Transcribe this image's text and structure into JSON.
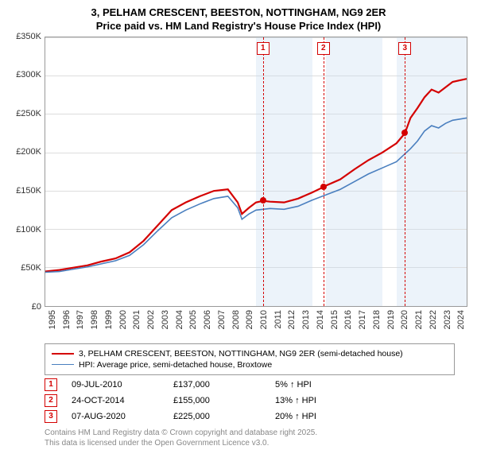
{
  "title_line1": "3, PELHAM CRESCENT, BEESTON, NOTTINGHAM, NG9 2ER",
  "title_line2": "Price paid vs. HM Land Registry's House Price Index (HPI)",
  "chart": {
    "type": "line",
    "background_color": "#ffffff",
    "plot_border_color": "#999999",
    "grid_color": "#dddddd",
    "shade_color": "rgba(200,220,240,0.35)",
    "ylim": [
      0,
      350000
    ],
    "ytick_step": 50000,
    "y_ticks": [
      "£0",
      "£50K",
      "£100K",
      "£150K",
      "£200K",
      "£250K",
      "£300K",
      "£350K"
    ],
    "x_years": [
      1995,
      1996,
      1997,
      1998,
      1999,
      2000,
      2001,
      2002,
      2003,
      2004,
      2005,
      2006,
      2007,
      2008,
      2009,
      2010,
      2011,
      2012,
      2013,
      2014,
      2015,
      2016,
      2017,
      2018,
      2019,
      2020,
      2021,
      2022,
      2023,
      2024
    ],
    "xlim": [
      1995,
      2025
    ],
    "shaded_x_ranges": [
      [
        2010,
        2011
      ],
      [
        2011,
        2012
      ],
      [
        2012,
        2013
      ],
      [
        2013,
        2014
      ],
      [
        2015,
        2016
      ],
      [
        2016,
        2017
      ],
      [
        2017,
        2018
      ],
      [
        2018,
        2019
      ],
      [
        2020,
        2021
      ],
      [
        2021,
        2022
      ],
      [
        2022,
        2023
      ],
      [
        2023,
        2024
      ],
      [
        2024,
        2025
      ]
    ],
    "series": [
      {
        "name": "price_paid",
        "label": "3, PELHAM CRESCENT, BEESTON, NOTTINGHAM, NG9 2ER (semi-detached house)",
        "color": "#d40000",
        "line_width": 2.2,
        "data": [
          [
            1995,
            45000
          ],
          [
            1996,
            47000
          ],
          [
            1997,
            50000
          ],
          [
            1998,
            53000
          ],
          [
            1999,
            58000
          ],
          [
            2000,
            62000
          ],
          [
            2001,
            70000
          ],
          [
            2002,
            85000
          ],
          [
            2003,
            105000
          ],
          [
            2004,
            125000
          ],
          [
            2005,
            135000
          ],
          [
            2006,
            143000
          ],
          [
            2007,
            150000
          ],
          [
            2008,
            152000
          ],
          [
            2008.7,
            135000
          ],
          [
            2009,
            120000
          ],
          [
            2009.5,
            128000
          ],
          [
            2010,
            135000
          ],
          [
            2010.5,
            137000
          ],
          [
            2011,
            136000
          ],
          [
            2012,
            135000
          ],
          [
            2013,
            140000
          ],
          [
            2014,
            148000
          ],
          [
            2014.8,
            155000
          ],
          [
            2015,
            157000
          ],
          [
            2016,
            165000
          ],
          [
            2017,
            178000
          ],
          [
            2018,
            190000
          ],
          [
            2019,
            200000
          ],
          [
            2020,
            212000
          ],
          [
            2020.6,
            225000
          ],
          [
            2021,
            245000
          ],
          [
            2021.5,
            258000
          ],
          [
            2022,
            272000
          ],
          [
            2022.5,
            282000
          ],
          [
            2023,
            278000
          ],
          [
            2023.5,
            285000
          ],
          [
            2024,
            292000
          ],
          [
            2024.5,
            294000
          ],
          [
            2025,
            296000
          ]
        ]
      },
      {
        "name": "hpi",
        "label": "HPI: Average price, semi-detached house, Broxtowe",
        "color": "#4a7fbf",
        "line_width": 1.6,
        "data": [
          [
            1995,
            44000
          ],
          [
            1996,
            45000
          ],
          [
            1997,
            48000
          ],
          [
            1998,
            51000
          ],
          [
            1999,
            55000
          ],
          [
            2000,
            59000
          ],
          [
            2001,
            66000
          ],
          [
            2002,
            80000
          ],
          [
            2003,
            98000
          ],
          [
            2004,
            115000
          ],
          [
            2005,
            125000
          ],
          [
            2006,
            133000
          ],
          [
            2007,
            140000
          ],
          [
            2008,
            143000
          ],
          [
            2008.7,
            128000
          ],
          [
            2009,
            113000
          ],
          [
            2009.5,
            120000
          ],
          [
            2010,
            125000
          ],
          [
            2011,
            127000
          ],
          [
            2012,
            126000
          ],
          [
            2013,
            130000
          ],
          [
            2014,
            138000
          ],
          [
            2015,
            145000
          ],
          [
            2016,
            152000
          ],
          [
            2017,
            162000
          ],
          [
            2018,
            172000
          ],
          [
            2019,
            180000
          ],
          [
            2020,
            188000
          ],
          [
            2021,
            205000
          ],
          [
            2021.5,
            215000
          ],
          [
            2022,
            228000
          ],
          [
            2022.5,
            235000
          ],
          [
            2023,
            232000
          ],
          [
            2023.5,
            238000
          ],
          [
            2024,
            242000
          ],
          [
            2025,
            245000
          ]
        ]
      }
    ],
    "event_vlines": [
      {
        "num": "1",
        "x": 2010.5,
        "color": "#d40000"
      },
      {
        "num": "2",
        "x": 2014.8,
        "color": "#d40000"
      },
      {
        "num": "3",
        "x": 2020.6,
        "color": "#d40000"
      }
    ],
    "event_points": [
      {
        "x": 2010.5,
        "y": 137000,
        "color": "#d40000"
      },
      {
        "x": 2014.8,
        "y": 155000,
        "color": "#d40000"
      },
      {
        "x": 2020.6,
        "y": 225000,
        "color": "#d40000"
      }
    ]
  },
  "legend": {
    "items": [
      {
        "label": "3, PELHAM CRESCENT, BEESTON, NOTTINGHAM, NG9 2ER (semi-detached house)",
        "color": "#d40000",
        "width": 2.2
      },
      {
        "label": "HPI: Average price, semi-detached house, Broxtowe",
        "color": "#4a7fbf",
        "width": 1.6
      }
    ]
  },
  "events": [
    {
      "num": "1",
      "date": "09-JUL-2010",
      "price": "£137,000",
      "delta": "5% ↑ HPI",
      "color": "#d40000"
    },
    {
      "num": "2",
      "date": "24-OCT-2014",
      "price": "£155,000",
      "delta": "13% ↑ HPI",
      "color": "#d40000"
    },
    {
      "num": "3",
      "date": "07-AUG-2020",
      "price": "£225,000",
      "delta": "20% ↑ HPI",
      "color": "#d40000"
    }
  ],
  "footer_line1": "Contains HM Land Registry data © Crown copyright and database right 2025.",
  "footer_line2": "This data is licensed under the Open Government Licence v3.0."
}
